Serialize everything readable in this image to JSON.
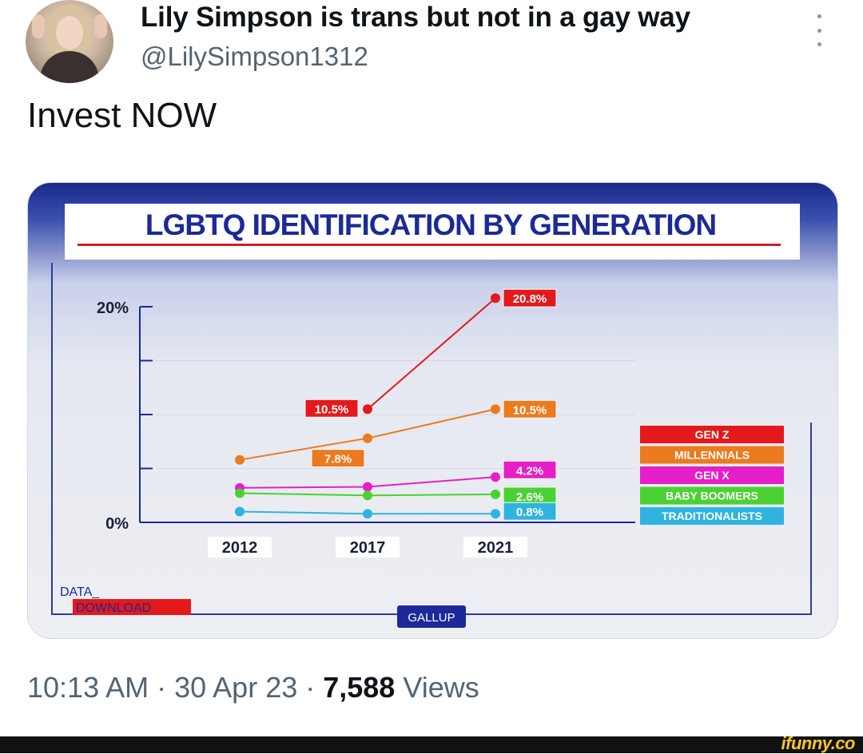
{
  "tweet": {
    "display_name": "Lily Simpson is trans but not in a gay way",
    "handle": "@LilySimpson1312",
    "text": "Invest NOW",
    "time": "10:13 AM",
    "separator": " · ",
    "date": "30 Apr 23",
    "views_count": "7,588",
    "views_label": " Views"
  },
  "icons": {
    "more": "more-vertical-icon",
    "avatar": "avatar-photo"
  },
  "watermark": "ifunny.co",
  "media": {
    "chart_image": {
      "header_title": "LGBTQ IDENTIFICATION BY GENERATION",
      "logo_line1": "DATA_",
      "logo_line2": "DOWNLOAD",
      "source": "GALLUP"
    }
  },
  "chart_data": {
    "type": "line",
    "title": "LGBTQ IDENTIFICATION BY GENERATION",
    "x": [
      "2012",
      "2017",
      "2021"
    ],
    "y_tick_labels": [
      "0%",
      "20%"
    ],
    "ylim": [
      0,
      20
    ],
    "legend_position": "right",
    "series": [
      {
        "name": "GEN Z",
        "color": "#e3191b",
        "points": [
          {
            "x": "2017",
            "y": 10.5
          },
          {
            "x": "2021",
            "y": 20.8
          }
        ]
      },
      {
        "name": "MILLENNIALS",
        "color": "#ec7a1e",
        "points": [
          {
            "x": "2012",
            "y": 5.8
          },
          {
            "x": "2017",
            "y": 7.8
          },
          {
            "x": "2021",
            "y": 10.5
          }
        ]
      },
      {
        "name": "GEN X",
        "color": "#e51fc8",
        "points": [
          {
            "x": "2012",
            "y": 3.2
          },
          {
            "x": "2017",
            "y": 3.3
          },
          {
            "x": "2021",
            "y": 4.2
          }
        ]
      },
      {
        "name": "BABY BOOMERS",
        "color": "#4bd133",
        "points": [
          {
            "x": "2012",
            "y": 2.7
          },
          {
            "x": "2017",
            "y": 2.5
          },
          {
            "x": "2021",
            "y": 2.6
          }
        ]
      },
      {
        "name": "TRADITIONALISTS",
        "color": "#2fb4e0",
        "points": [
          {
            "x": "2012",
            "y": 1.0
          },
          {
            "x": "2017",
            "y": 0.8
          },
          {
            "x": "2021",
            "y": 0.8
          }
        ]
      }
    ],
    "data_labels": [
      {
        "text": "10.5%",
        "series": "GEN Z",
        "x": "2017"
      },
      {
        "text": "20.8%",
        "series": "GEN Z",
        "x": "2021"
      },
      {
        "text": "7.8%",
        "series": "MILLENNIALS",
        "x": "2017"
      },
      {
        "text": "10.5%",
        "series": "MILLENNIALS",
        "x": "2021"
      },
      {
        "text": "4.2%",
        "series": "GEN X",
        "x": "2021"
      },
      {
        "text": "2.6%",
        "series": "BABY BOOMERS",
        "x": "2021"
      },
      {
        "text": "0.8%",
        "series": "TRADITIONALISTS",
        "x": "2021"
      }
    ]
  }
}
